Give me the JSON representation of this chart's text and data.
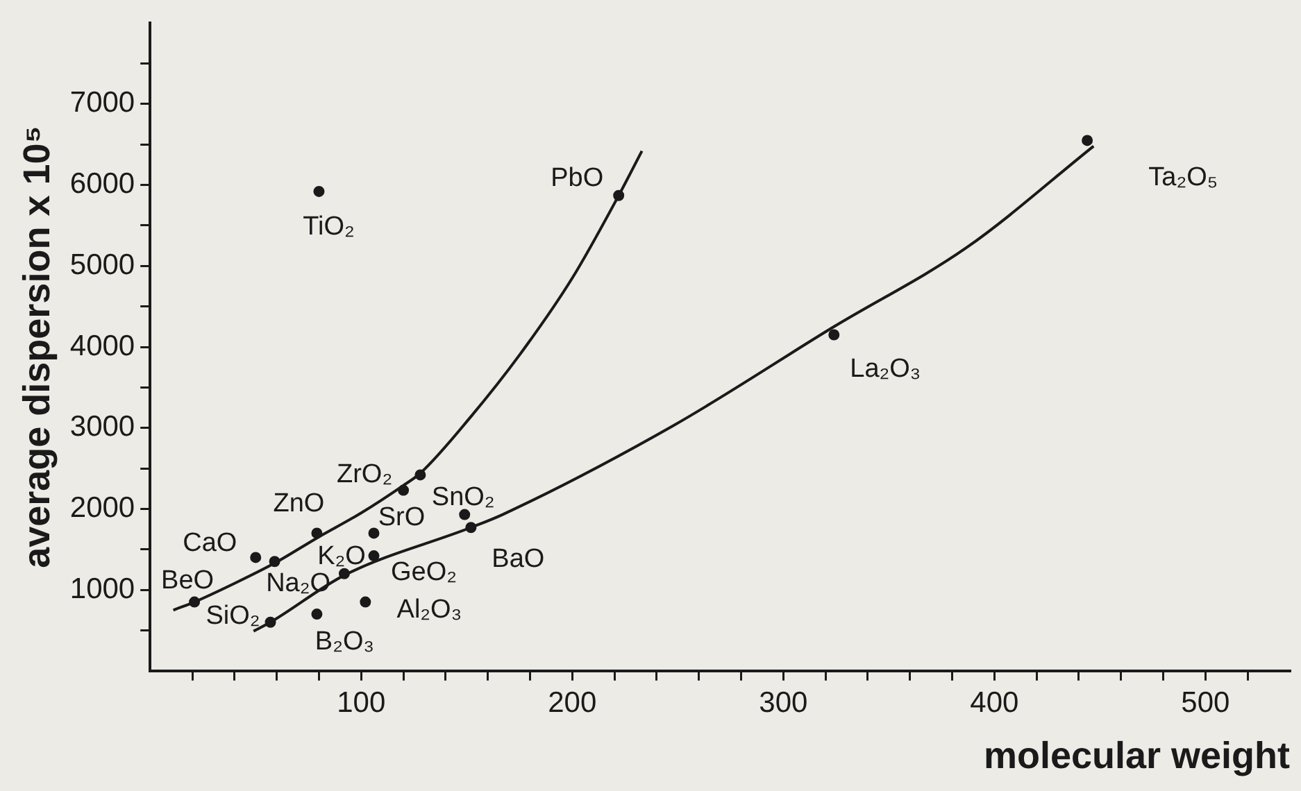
{
  "chart_data": {
    "type": "scatter",
    "xlabel": "molecular weight",
    "ylabel": "average dispersion x 10⁵",
    "xlim": [
      0,
      540
    ],
    "ylim": [
      0,
      8000
    ],
    "xticks": [
      {
        "value": 20,
        "label": null
      },
      {
        "value": 40,
        "label": null
      },
      {
        "value": 60,
        "label": null
      },
      {
        "value": 80,
        "label": null
      },
      100,
      {
        "value": 120,
        "label": null
      },
      {
        "value": 140,
        "label": null
      },
      {
        "value": 160,
        "label": null
      },
      {
        "value": 180,
        "label": null
      },
      200,
      {
        "value": 220,
        "label": null
      },
      {
        "value": 240,
        "label": null
      },
      {
        "value": 260,
        "label": null
      },
      {
        "value": 280,
        "label": null
      },
      300,
      {
        "value": 320,
        "label": null
      },
      {
        "value": 340,
        "label": null
      },
      {
        "value": 360,
        "label": null
      },
      {
        "value": 380,
        "label": null
      },
      400,
      {
        "value": 420,
        "label": null
      },
      {
        "value": 440,
        "label": null
      },
      {
        "value": 460,
        "label": null
      },
      {
        "value": 480,
        "label": null
      },
      500,
      {
        "value": 520,
        "label": null
      }
    ],
    "yticks": [
      {
        "value": 500,
        "label": null
      },
      1000,
      {
        "value": 1500,
        "label": null
      },
      2000,
      {
        "value": 2500,
        "label": null
      },
      3000,
      {
        "value": 3500,
        "label": null
      },
      4000,
      {
        "value": 4500,
        "label": null
      },
      5000,
      {
        "value": 5500,
        "label": null
      },
      6000,
      {
        "value": 6500,
        "label": null
      },
      7000,
      {
        "value": 7500,
        "label": null
      }
    ],
    "grid": false,
    "legend": false,
    "marker": "circle",
    "series": [
      {
        "color": "#1a1a1a",
        "x": [
          21,
          57,
          50,
          59,
          79,
          79,
          92,
          102,
          106,
          106,
          120,
          128,
          149,
          152,
          80,
          222,
          324,
          444
        ],
        "values": [
          850,
          600,
          1400,
          1350,
          1700,
          700,
          1200,
          850,
          1700,
          1420,
          2230,
          2420,
          1930,
          1770,
          5920,
          5870,
          4150,
          6550
        ]
      },
      {
        "type": "line",
        "color": "#1a1a1a",
        "marker": "none",
        "x": [
          11,
          21,
          40,
          59,
          79,
          100,
          120,
          128,
          152,
          175,
          200,
          222,
          233
        ],
        "values": [
          750,
          850,
          1080,
          1330,
          1640,
          1950,
          2290,
          2440,
          3140,
          3900,
          4850,
          5870,
          6420
        ]
      },
      {
        "type": "line",
        "color": "#1a1a1a",
        "marker": "none",
        "x": [
          49,
          57,
          92,
          152,
          167,
          248,
          324,
          387,
          447
        ],
        "values": [
          490,
          600,
          1180,
          1770,
          1930,
          3030,
          4250,
          5230,
          6480
        ]
      }
    ],
    "annotations": [
      {
        "text": "BeO",
        "x": 21,
        "y": 850
      },
      {
        "text": "SiO₂",
        "x": 57,
        "y": 600
      },
      {
        "text": "CaO",
        "x": 50,
        "y": 1400
      },
      {
        "text": "Na₂O",
        "x": 59,
        "y": 1350
      },
      {
        "text": "ZnO",
        "x": 79,
        "y": 1700
      },
      {
        "text": "B₂O₃",
        "x": 79,
        "y": 700
      },
      {
        "text": "K₂O",
        "x": 92,
        "y": 1200
      },
      {
        "text": "Al₂O₃",
        "x": 102,
        "y": 850
      },
      {
        "text": "SrO",
        "x": 106,
        "y": 1700
      },
      {
        "text": "GeO₂",
        "x": 106,
        "y": 1420
      },
      {
        "text": "ZrO₂",
        "x": 120,
        "y": 2230
      },
      {
        "text": "SnO₂",
        "x": 149,
        "y": 1930
      },
      {
        "text": "BaO",
        "x": 152,
        "y": 1770
      },
      {
        "text": "TiO₂",
        "x": 80,
        "y": 5920
      },
      {
        "text": "PbO",
        "x": 222,
        "y": 5870
      },
      {
        "text": "La₂O₃",
        "x": 324,
        "y": 4150
      },
      {
        "text": "Ta₂O₅",
        "x": 444,
        "y": 6550
      }
    ]
  }
}
